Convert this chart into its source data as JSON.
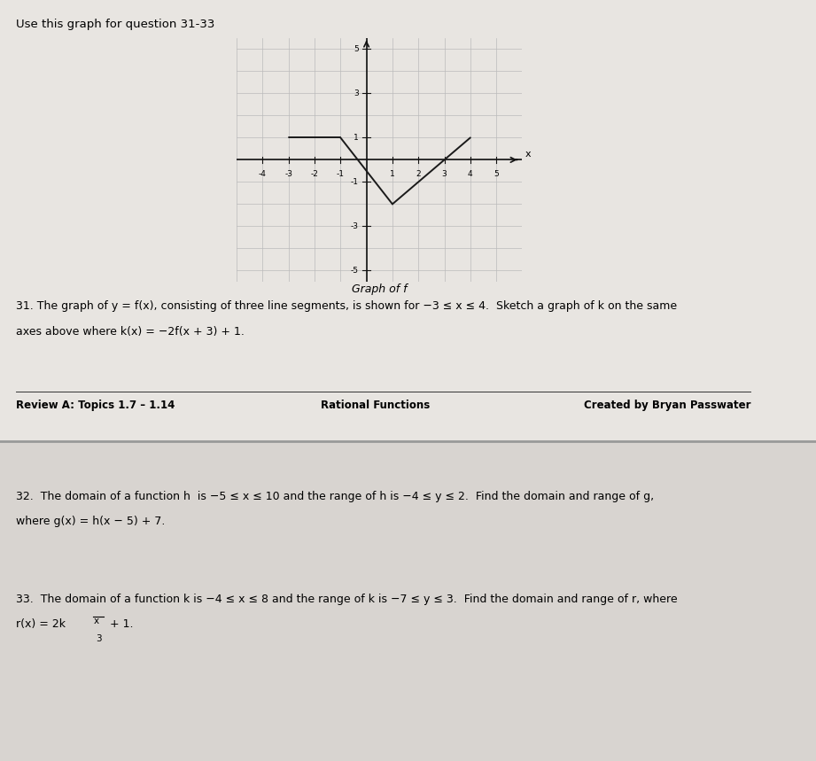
{
  "title_top": "Use this graph for question 31-33",
  "graph_title": "Graph of f",
  "f_segments": [
    [
      [
        -3,
        1
      ],
      [
        -1,
        1
      ]
    ],
    [
      [
        -1,
        1
      ],
      [
        1,
        -2
      ]
    ],
    [
      [
        1,
        -2
      ],
      [
        4,
        1
      ]
    ]
  ],
  "f_color": "#1a1a1a",
  "f_linewidth": 1.4,
  "xlim": [
    -5,
    6
  ],
  "ylim": [
    -5.5,
    5.5
  ],
  "xticks": [
    -4,
    -3,
    -2,
    -1,
    1,
    2,
    3,
    4,
    5
  ],
  "yticks": [
    -5,
    -3,
    -1,
    1,
    3,
    5
  ],
  "ytick_labels": [
    "-5",
    "-3",
    "-1",
    "1",
    "3",
    "5"
  ],
  "grid_color": "#bbbbbb",
  "grid_linewidth": 0.5,
  "axis_color": "#111111",
  "page_bg_top": "#e8e5e1",
  "page_bg_bottom": "#d8d4d0",
  "graph_bg": "#e0ddd9",
  "q31_line1": "31. The graph of y = f(x), consisting of three line segments, is shown for −3 ≤ x ≤ 4.  Sketch a graph of k on the same",
  "q31_line2": "axes above where k(x) = −2f(x + 3) + 1.",
  "footer_left": "Review A: Topics 1.7 – 1.14",
  "footer_center": "Rational Functions",
  "footer_right": "Created by Bryan Passwater",
  "q32_line1": "32.  The domain of a function h  is −5 ≤ x ≤ 10 and the range of h is −4 ≤ y ≤ 2.  Find the domain and range of g,",
  "q32_line2": "where g(x) = h(x − 5) + 7.",
  "q33_line1": "33.  The domain of a function k is −4 ≤ x ≤ 8 and the range of k is −7 ≤ y ≤ 3.  Find the domain and range of r, where",
  "q33_frac_prefix": "r(x) = 2k",
  "q33_frac_num": "x",
  "q33_frac_den": "3",
  "q33_frac_suffix": " + 1."
}
